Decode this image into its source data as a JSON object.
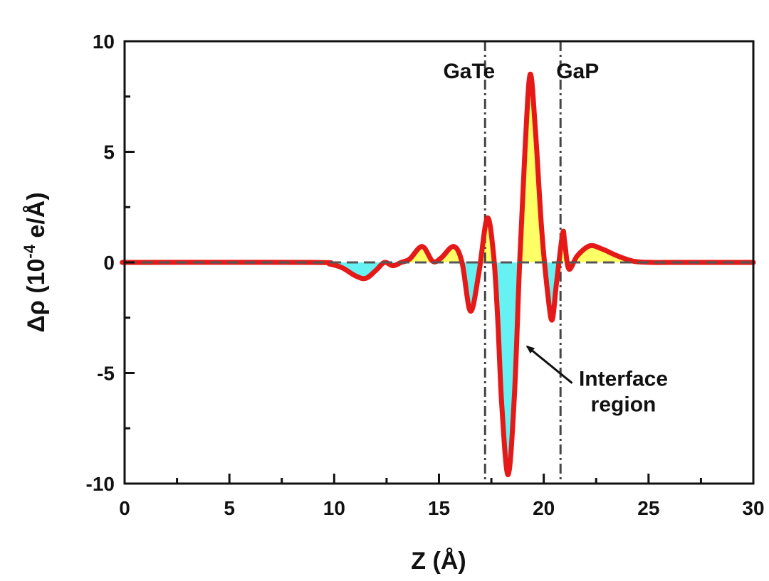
{
  "chart_data": {
    "type": "line",
    "xlabel": "Z (Å)",
    "ylabel_symbol": "Δρ",
    "ylabel_unit_prefix": "(10",
    "ylabel_exponent": "-4",
    "ylabel_unit_suffix": " e/Å)",
    "xlim": [
      0,
      30
    ],
    "ylim": [
      -10,
      10
    ],
    "x_ticks": [
      0,
      5,
      10,
      15,
      20,
      25,
      30
    ],
    "y_ticks": [
      -10,
      -5,
      0,
      5,
      10
    ],
    "grid": false,
    "baseline_y": 0,
    "series": [
      {
        "name": "Δρ",
        "color": "#e61919",
        "x": [
          0,
          0.8,
          9.0,
          9.8,
          10.4,
          11.0,
          11.5,
          12.0,
          12.4,
          12.8,
          13.2,
          13.6,
          14.2,
          14.7,
          15.1,
          15.7,
          16.1,
          16.5,
          16.9,
          17.3,
          17.6,
          17.8,
          18.0,
          18.3,
          18.6,
          18.85,
          19.1,
          19.35,
          19.6,
          19.9,
          20.2,
          20.4,
          20.6,
          20.9,
          21.0,
          21.2,
          21.6,
          22.2,
          22.8,
          23.5,
          24.3,
          25.2,
          26.0,
          30
        ],
        "values": [
          0,
          0,
          0,
          -0.08,
          -0.25,
          -0.6,
          -0.72,
          -0.35,
          0.0,
          -0.15,
          0.0,
          0.15,
          0.72,
          0.05,
          0.2,
          0.72,
          0.0,
          -2.2,
          -0.5,
          2.0,
          0.4,
          -2.5,
          -6.5,
          -9.6,
          -6.0,
          0.0,
          5.0,
          8.5,
          6.0,
          1.5,
          -1.5,
          -2.6,
          -1.0,
          1.3,
          0.9,
          -0.3,
          0.3,
          0.75,
          0.6,
          0.3,
          0.05,
          0.0,
          0.0,
          0
        ],
        "positive_fill": "#ffff66",
        "negative_fill": "#66f2f2"
      }
    ],
    "reference_lines": [
      {
        "x": 17.2,
        "label": "GaTe"
      },
      {
        "x": 20.8,
        "label": "GaP"
      }
    ],
    "annotation": {
      "line1": "Interface",
      "line2": "region",
      "arrow_target": [
        19.0,
        -3.7
      ],
      "text_anchor": [
        23.8,
        -5.2
      ]
    }
  }
}
